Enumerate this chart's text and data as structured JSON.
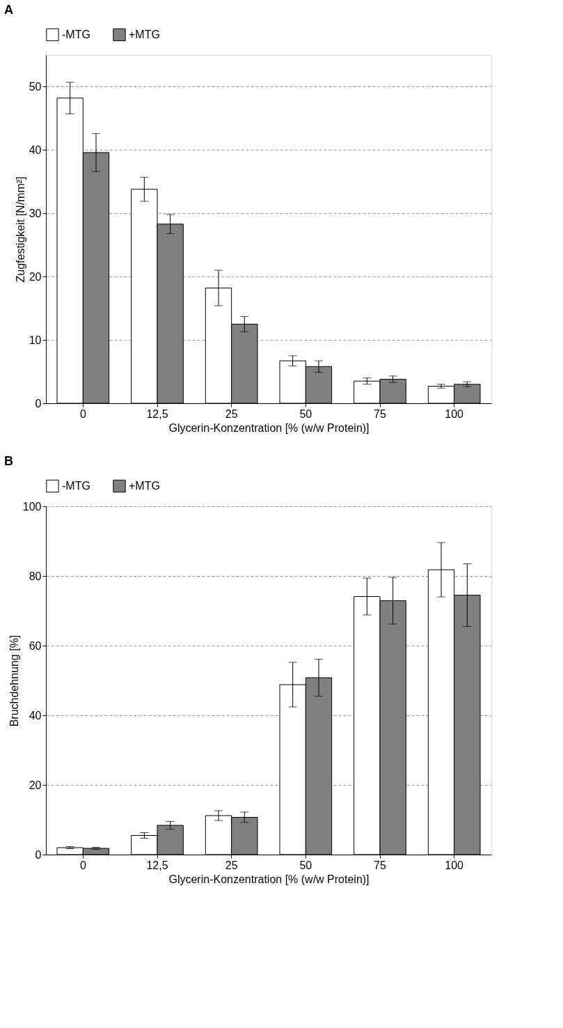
{
  "chart_data": [
    {
      "type": "bar",
      "title": "A",
      "xlabel": "Glycerin-Konzentration [% (w/w Protein)]",
      "ylabel": "Zugfestigkeit [N/mm²]",
      "categories": [
        "0",
        "12,5",
        "25",
        "50",
        "75",
        "100"
      ],
      "series": [
        {
          "name": "-MTG",
          "color": "#ffffff",
          "values": [
            48.2,
            33.8,
            18.2,
            6.7,
            3.5,
            2.7
          ],
          "errors": [
            2.5,
            1.9,
            2.8,
            0.8,
            0.5,
            0.3
          ]
        },
        {
          "name": "+MTG",
          "color": "#808080",
          "values": [
            39.6,
            28.3,
            12.5,
            5.8,
            3.8,
            3.0
          ],
          "errors": [
            3.0,
            1.5,
            1.2,
            0.9,
            0.5,
            0.4
          ]
        }
      ],
      "ylim": [
        0,
        55
      ],
      "yticks": [
        0,
        10,
        20,
        30,
        40,
        50
      ],
      "grid": "y",
      "legend": "top left"
    },
    {
      "type": "bar",
      "title": "B",
      "xlabel": "Glycerin-Konzentration [% (w/w Protein)]",
      "ylabel": "Bruchdehnung [%]",
      "categories": [
        "0",
        "12,5",
        "25",
        "50",
        "75",
        "100"
      ],
      "series": [
        {
          "name": "-MTG",
          "color": "#ffffff",
          "values": [
            2.0,
            5.5,
            11.2,
            48.8,
            74.1,
            81.8
          ],
          "errors": [
            0.3,
            0.8,
            1.4,
            6.4,
            5.3,
            7.8
          ]
        },
        {
          "name": "+MTG",
          "color": "#808080",
          "values": [
            1.8,
            8.4,
            10.7,
            50.8,
            72.9,
            74.5
          ],
          "errors": [
            0.3,
            1.1,
            1.5,
            5.3,
            6.7,
            9.0
          ]
        }
      ],
      "ylim": [
        0,
        100
      ],
      "yticks": [
        0,
        20,
        40,
        60,
        80,
        100
      ],
      "grid": "y",
      "legend": "top left"
    }
  ]
}
